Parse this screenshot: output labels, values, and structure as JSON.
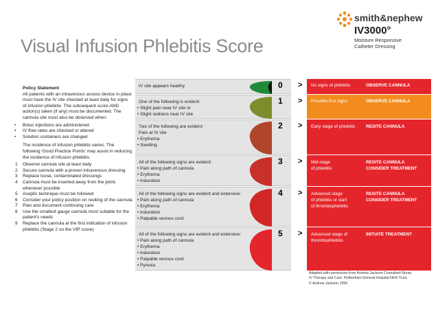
{
  "title": "Visual Infusion Phlebitis Score",
  "brand": {
    "name": "smith&nephew",
    "product": "IV3000°",
    "product_sub_1": "Moisture Responsive",
    "product_sub_2": "Catheter Dressing"
  },
  "policy": {
    "heading": "Policy Statement",
    "intro": "All patients with an intravenous access device in place must have the IV site checked at least daily for signs of infusion phlebitis. The subsequent score AND action(s) taken (if any) must be documented. The cannula site must also be observed when:",
    "bullets": [
      "Bolus injections are administered",
      "IV flow rates are checked or altered",
      "Solution containers are changed"
    ],
    "para2": "The incidence of infusion phlebitis varies. The following 'Good Practice Points' may assist in reducing the incidence of infusion phlebitis:",
    "points": [
      "Observe cannula site at least daily",
      "Secure cannula with a proven intravenous dressing",
      "Replace loose, contaminated dressings",
      "Cannula must be inserted away from the joints whenever possible",
      "Aseptic technique must be followed",
      "Consider your policy position on resiting of the cannula",
      "Plan and document continuing care",
      "Use the smallest gauge cannula most suitable for the patient's needs",
      "Replace the cannula at the first indication of infusion phlebitis (Stage 2 on the VIP score)"
    ]
  },
  "rows": [
    {
      "lead": "IV site appears healthy",
      "lead2": "",
      "signs": [],
      "score": "0",
      "arrow": ">",
      "obs": [
        "No signs of phlebitis"
      ],
      "action": [
        "OBSERVE CANNULA"
      ],
      "color": "#e4262c",
      "blob": "#1f8a3a"
    },
    {
      "lead": "One of the following is evident:",
      "lead2": "",
      "signs": [
        "Slight pain near IV site or",
        "Slight redness near IV site"
      ],
      "score": "1",
      "arrow": ">",
      "obs": [
        "Possible first signs"
      ],
      "action": [
        "OBSERVE CANNULA"
      ],
      "color": "#f28c1e",
      "blob": "#7e8d2b"
    },
    {
      "lead": "Two of the following are evident:",
      "lead2": "Pain at IV site",
      "signs": [
        "Erythema",
        "Swelling"
      ],
      "score": "2",
      "arrow": ">",
      "obs": [
        "Early stage of phlebitis"
      ],
      "action": [
        "RESITE CANNULA"
      ],
      "color": "#e4262c",
      "blob": "#b0452b"
    },
    {
      "lead": "All of the following signs are evident:",
      "lead2": "",
      "signs": [
        "Pain along path of cannula",
        "Erythema",
        "Induration"
      ],
      "score": "3",
      "arrow": ">",
      "obs": [
        "Mid-stage",
        "of phlebitis"
      ],
      "action": [
        "RESITE CANNULA",
        "CONSIDER TREATMENT"
      ],
      "color": "#e4262c",
      "blob": "#c8302a"
    },
    {
      "lead": "All of the following signs are evident and extensive:",
      "lead2": "",
      "signs": [
        "Pain along path of cannula",
        "Erythema",
        "Induration",
        "Palpable venous cord"
      ],
      "score": "4",
      "arrow": ">",
      "obs": [
        "Advanced stage",
        "of phlebitis or start",
        "of thrombophlebitis"
      ],
      "action": [
        "RESITE CANNULA",
        "CONSIDER TREATMENT"
      ],
      "color": "#e4262c",
      "blob": "#d22727"
    },
    {
      "lead": "All of the following signs are evident and extensive:",
      "lead2": "",
      "signs": [
        "Pain along path of cannula",
        "Erythema",
        "Induration",
        "Palpable venous cord",
        "Pyrexia"
      ],
      "score": "5",
      "arrow": ">",
      "obs": [
        "Advanced stage of",
        "thrombophlebitis"
      ],
      "action": [
        "INITIATE TREATMENT"
      ],
      "color": "#e4262c",
      "blob": "#e4262c"
    }
  ],
  "credit": [
    "Adapted with permission from Andrew Jackson Consultant Nurse,",
    "IV Therapy and Care, Rotherham General Hospital NHS Trust,",
    "© Andrew Jackson 1999"
  ]
}
